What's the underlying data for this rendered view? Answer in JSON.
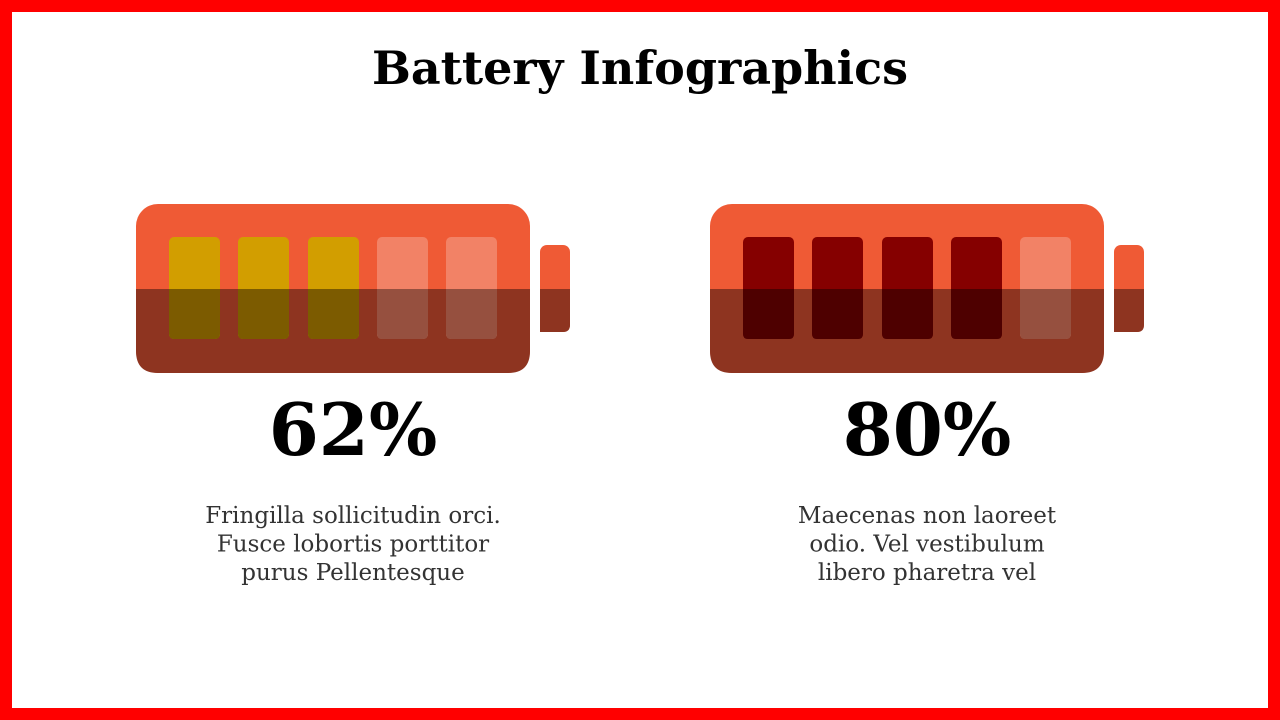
{
  "title": "Battery Infographics",
  "items": [
    {
      "percent": "62%",
      "description": [
        "Fringilla sollicitudin orci.",
        "Fusce lobortis porttitor",
        "purus Pellentesque"
      ]
    },
    {
      "percent": "80%",
      "description": [
        "Maecenas non laoreet",
        "odio. Vel vestibulum",
        "libero pharetra vel"
      ]
    }
  ]
}
